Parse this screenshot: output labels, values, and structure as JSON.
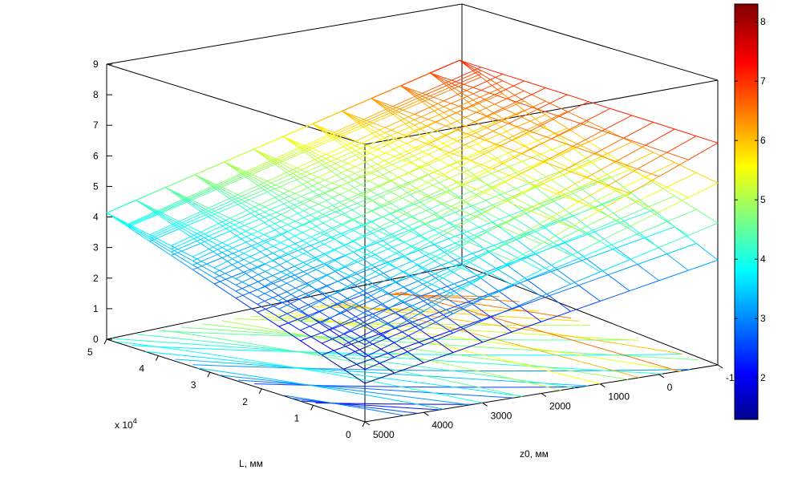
{
  "chart_data": {
    "type": "surface",
    "title": "",
    "xlabel": "L, мм",
    "ylabel": "z0, мм",
    "zlabel": "",
    "x_exponent_label": "x 10",
    "x_exponent_power": "4",
    "x_ticks": [
      "0",
      "1",
      "2",
      "3",
      "4",
      "5"
    ],
    "y_ticks": [
      "5000",
      "4000",
      "3000",
      "2000",
      "1000",
      "0",
      "-1"
    ],
    "z_ticks": [
      "0",
      "1",
      "2",
      "3",
      "4",
      "5",
      "6",
      "7",
      "8",
      "9"
    ],
    "colorbar_ticks": [
      "2",
      "3",
      "4",
      "5",
      "6",
      "7",
      "8"
    ],
    "colormap": "jet",
    "zlim": [
      0,
      9
    ],
    "color_range": [
      1.3,
      8.3
    ],
    "grid": false,
    "surfaces": [
      {
        "z_near_corner": 1.25,
        "z_far_L_corner": 4.1,
        "z_far_z0_corner": 3.4,
        "z_max": 7.2
      },
      {
        "z_near_corner": 1.7,
        "z_far_L_corner": 4.1,
        "z_far_z0_corner": 4.6,
        "z_max": 7.2
      },
      {
        "z_near_corner": 2.1,
        "z_far_L_corner": 4.1,
        "z_far_z0_corner": 5.9,
        "z_max": 7.2
      },
      {
        "z_near_corner": 2.5,
        "z_far_L_corner": 4.1,
        "z_far_z0_corner": 7.2,
        "z_max": 7.2
      }
    ],
    "contours_on_floor": true
  }
}
